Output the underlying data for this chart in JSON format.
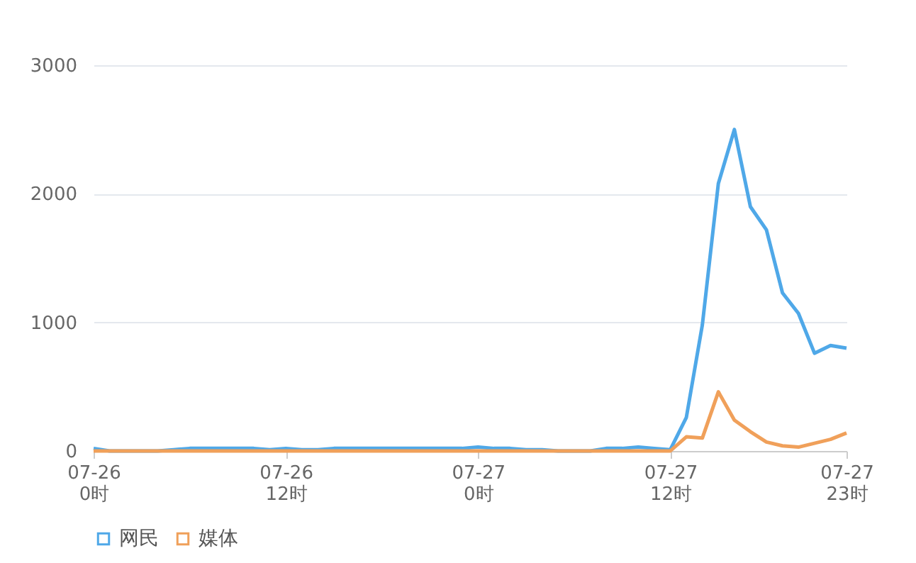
{
  "chart_data": {
    "type": "line",
    "categories": [
      "07-26\n0时",
      null,
      null,
      null,
      null,
      null,
      null,
      null,
      null,
      null,
      null,
      null,
      "07-26\n12时",
      null,
      null,
      null,
      null,
      null,
      null,
      null,
      null,
      null,
      null,
      null,
      "07-27\n0时",
      null,
      null,
      null,
      null,
      null,
      null,
      null,
      null,
      null,
      null,
      null,
      "07-27\n12时",
      null,
      null,
      null,
      null,
      null,
      null,
      null,
      null,
      null,
      null,
      "07-27\n23时"
    ],
    "series": [
      {
        "name": "网民",
        "color": "#4fa8e8",
        "values": [
          20,
          0,
          0,
          0,
          0,
          10,
          20,
          20,
          20,
          20,
          20,
          10,
          20,
          10,
          10,
          20,
          20,
          20,
          20,
          20,
          20,
          20,
          20,
          20,
          30,
          20,
          20,
          10,
          10,
          0,
          0,
          0,
          20,
          20,
          30,
          20,
          10,
          260,
          980,
          2080,
          2500,
          1900,
          1720,
          1230,
          1070,
          760,
          820,
          800
        ]
      },
      {
        "name": "媒体",
        "color": "#f0a05a",
        "values": [
          0,
          0,
          0,
          0,
          0,
          0,
          0,
          0,
          0,
          0,
          0,
          0,
          0,
          0,
          0,
          0,
          0,
          0,
          0,
          0,
          0,
          0,
          0,
          0,
          0,
          0,
          0,
          0,
          0,
          0,
          0,
          0,
          0,
          0,
          0,
          0,
          0,
          110,
          100,
          460,
          240,
          150,
          70,
          40,
          30,
          60,
          90,
          140
        ]
      }
    ],
    "ylim": [
      0,
      3000
    ],
    "yticks": [
      0,
      1000,
      2000,
      3000
    ],
    "grid": "y",
    "legend": "bottom",
    "marker": "none",
    "line_style": "solid"
  }
}
